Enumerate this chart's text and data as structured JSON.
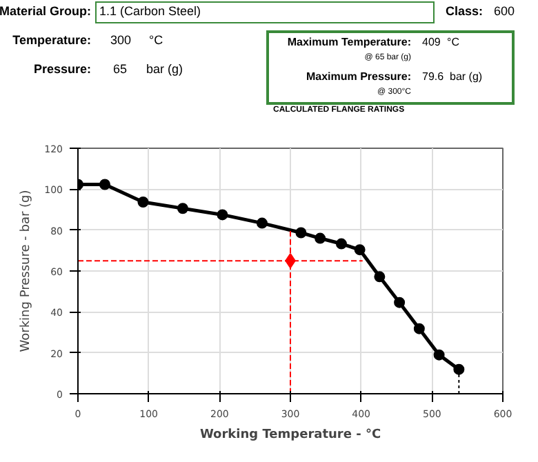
{
  "chart_data": {
    "type": "line",
    "xlabel": "Working Temperature - °C",
    "ylabel": "Working Pressure - bar (g)",
    "annotations": [
      "Material Group:",
      "1.1 (Carbon Steel)",
      "Class:",
      "600",
      "Temperature:",
      "300",
      "°C",
      "Pressure:",
      "65",
      "bar (g)",
      "Maximum Temperature:",
      "409",
      "°C",
      "@ 65 bar (g)",
      "Maximum Pressure:",
      "79.6",
      "bar (g)",
      "@ 300°C",
      "CALCULATED FLANGE RATINGS"
    ],
    "xlim": [
      0,
      600
    ],
    "ylim": [
      0,
      120
    ],
    "xticks": [
      0,
      100,
      200,
      300,
      400,
      500,
      600
    ],
    "yticks": [
      0,
      20,
      40,
      60,
      80,
      100,
      120
    ],
    "grid": true,
    "series": [
      {
        "color": "#000000",
        "marker": "circle",
        "line_style": "solid",
        "x": [
          0,
          38,
          92,
          148,
          204,
          260,
          315,
          342,
          372,
          398,
          426,
          454,
          482,
          510,
          538
        ],
        "values": [
          102.3,
          102.3,
          93.7,
          90.6,
          87.5,
          83.4,
          78.7,
          76,
          73.3,
          70.4,
          57.2,
          44.6,
          31.8,
          19,
          11.9
        ]
      },
      {
        "color": "#ff0000",
        "marker": "none",
        "line_style": "dashed",
        "x": [
          0,
          402
        ],
        "values": [
          65,
          65
        ]
      },
      {
        "color": "#ff0000",
        "marker": "none",
        "line_style": "dashed",
        "x": [
          300,
          300
        ],
        "values": [
          0,
          79.6
        ]
      },
      {
        "color": "#000000",
        "marker": "none",
        "line_style": "dotted",
        "x": [
          538,
          538
        ],
        "values": [
          0,
          11.9
        ]
      },
      {
        "type": "scatter",
        "color": "#ff0000",
        "marker": "diamond",
        "x": [
          300
        ],
        "values": [
          65
        ]
      }
    ]
  }
}
